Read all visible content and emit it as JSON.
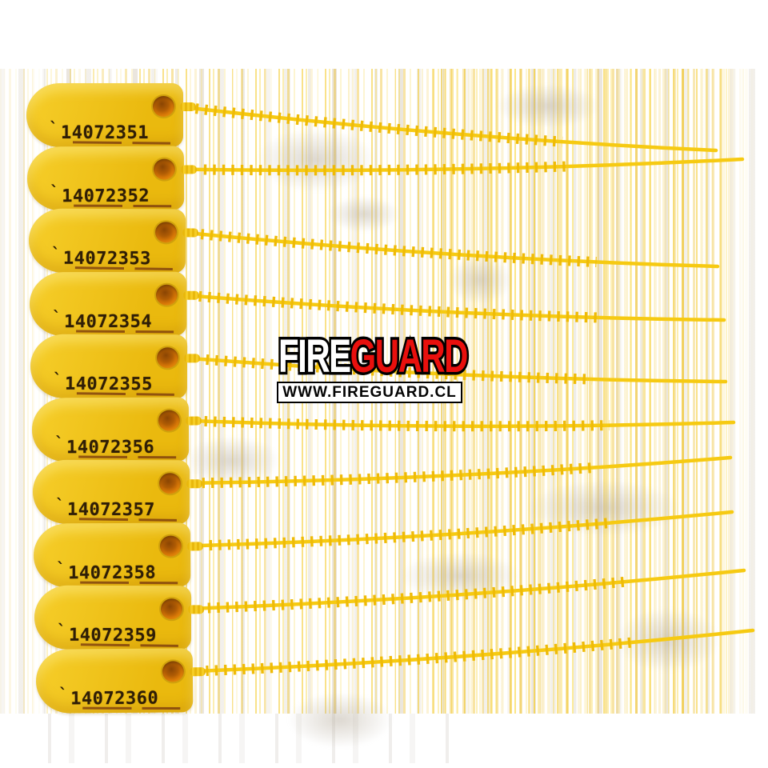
{
  "seals": {
    "tick_mark": "`",
    "serials": [
      "14072351",
      "14072352",
      "14072353",
      "14072354",
      "14072355",
      "14072356",
      "14072357",
      "14072358",
      "14072359",
      "14072360"
    ]
  },
  "logo": {
    "brand_part1": "FIRE",
    "brand_part2": "GUARD",
    "website": "WWW.FIREGUARD.CL"
  },
  "colors": {
    "tag_yellow_light": "#f6ce2a",
    "tag_yellow_deep": "#eab90e",
    "strap_yellow": "#f6ca12",
    "strap_teeth": "#efbb07",
    "hole_orange": "#b05c04",
    "stamp_ink": "#2f1e06",
    "underline_brown": "#7c3c0e",
    "logo_red": "#e9100d",
    "logo_white": "#ffffff",
    "logo_outline": "#000000",
    "artifact_tan": "#c4b69e",
    "artifact_gray": "#d8d3cb"
  }
}
